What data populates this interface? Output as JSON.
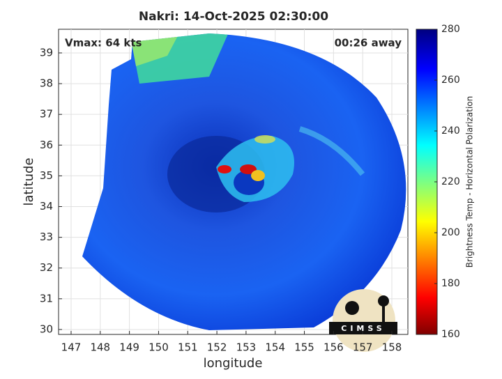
{
  "chart_data": {
    "type": "image",
    "title": "Nakri: 14-Oct-2025 02:30:00",
    "annotations": [
      "Vmax: 64 kts",
      "00:26 away"
    ],
    "x_label": "longitude",
    "y_label": "latitude",
    "xlim": [
      146.57,
      158.55
    ],
    "ylim": [
      29.84,
      39.77
    ],
    "xticks": [
      147,
      148,
      149,
      150,
      151,
      152,
      153,
      154,
      155,
      156,
      157,
      158
    ],
    "yticks": [
      30,
      31,
      32,
      33,
      34,
      35,
      36,
      37,
      38,
      39
    ],
    "grid": true,
    "colorbar": {
      "label": "Brightness Temp - Horizontal Polarization",
      "lim": [
        160,
        280
      ],
      "ticks": [
        160,
        180,
        200,
        220,
        240,
        260,
        280
      ],
      "colormap": "jet"
    }
  },
  "logo": {
    "text": "CIMSS"
  }
}
